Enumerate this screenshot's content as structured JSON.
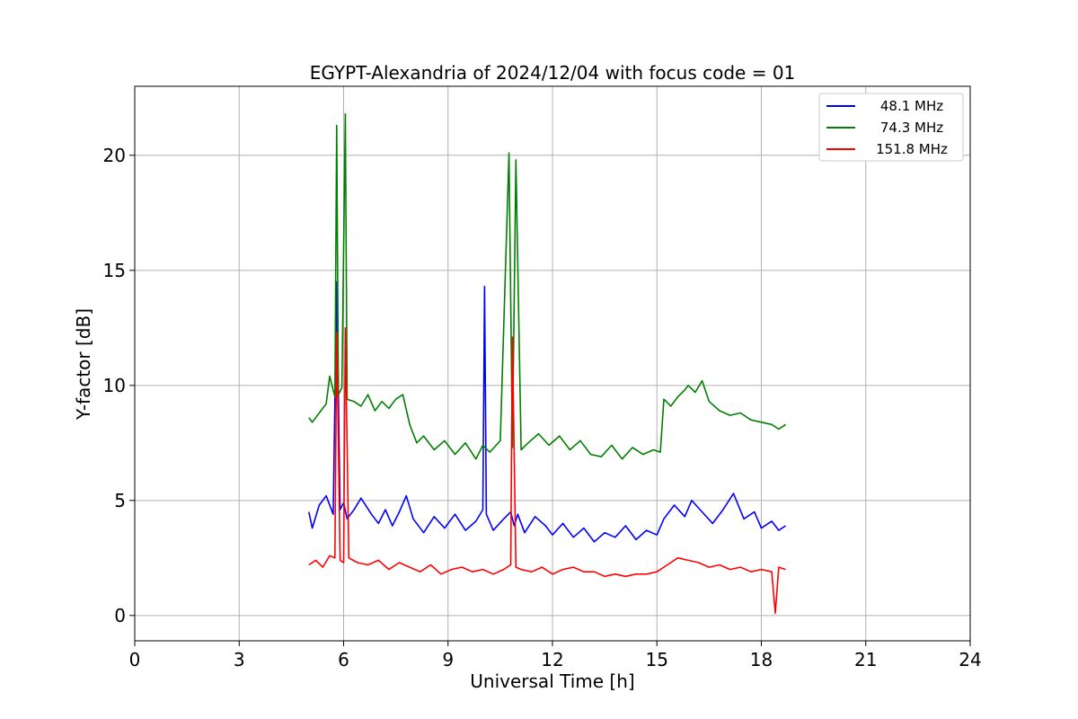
{
  "chart_data": {
    "type": "line",
    "title": "EGYPT-Alexandria of 2024/12/04 with focus code = 01",
    "xlabel": "Universal Time [h]",
    "ylabel": "Y-factor [dB]",
    "xlim": [
      0,
      24
    ],
    "ylim": [
      -1.1,
      23
    ],
    "xticks": [
      0,
      3,
      6,
      9,
      12,
      15,
      18,
      21,
      24
    ],
    "yticks": [
      0,
      5,
      10,
      15,
      20
    ],
    "grid": true,
    "legend_position": "top-right",
    "series": [
      {
        "name": "48.1 MHz",
        "color": "#0000ff",
        "x": [
          5.0,
          5.1,
          5.3,
          5.5,
          5.7,
          5.8,
          5.9,
          6.0,
          6.1,
          6.3,
          6.5,
          6.8,
          7.0,
          7.2,
          7.4,
          7.6,
          7.8,
          8.0,
          8.3,
          8.6,
          8.9,
          9.2,
          9.5,
          9.8,
          10.0,
          10.05,
          10.1,
          10.3,
          10.6,
          10.8,
          10.9,
          11.0,
          11.2,
          11.5,
          11.8,
          12.0,
          12.3,
          12.6,
          12.9,
          13.2,
          13.5,
          13.8,
          14.1,
          14.4,
          14.7,
          15.0,
          15.2,
          15.5,
          15.8,
          16.0,
          16.3,
          16.6,
          16.9,
          17.2,
          17.5,
          17.8,
          18.0,
          18.3,
          18.5,
          18.7
        ],
        "y": [
          4.5,
          3.8,
          4.8,
          5.2,
          4.4,
          14.5,
          4.6,
          4.9,
          4.2,
          4.6,
          5.1,
          4.4,
          4.0,
          4.6,
          3.9,
          4.5,
          5.2,
          4.2,
          3.6,
          4.3,
          3.8,
          4.4,
          3.7,
          4.1,
          4.6,
          14.3,
          4.4,
          3.7,
          4.2,
          4.5,
          3.9,
          4.4,
          3.6,
          4.3,
          3.9,
          3.5,
          4.0,
          3.4,
          3.8,
          3.2,
          3.6,
          3.4,
          3.9,
          3.3,
          3.7,
          3.5,
          4.2,
          4.8,
          4.3,
          5.0,
          4.5,
          4.0,
          4.6,
          5.3,
          4.2,
          4.5,
          3.8,
          4.1,
          3.7,
          3.9
        ]
      },
      {
        "name": "74.3 MHz",
        "color": "#008000",
        "x": [
          5.0,
          5.1,
          5.3,
          5.5,
          5.6,
          5.75,
          5.8,
          5.85,
          5.95,
          6.05,
          6.1,
          6.3,
          6.5,
          6.7,
          6.9,
          7.1,
          7.3,
          7.5,
          7.7,
          7.9,
          8.1,
          8.3,
          8.6,
          8.9,
          9.2,
          9.5,
          9.8,
          10.0,
          10.2,
          10.5,
          10.75,
          10.85,
          10.95,
          11.1,
          11.3,
          11.6,
          11.9,
          12.2,
          12.5,
          12.8,
          13.1,
          13.4,
          13.7,
          14.0,
          14.3,
          14.6,
          14.9,
          15.1,
          15.2,
          15.4,
          15.6,
          15.8,
          15.9,
          16.1,
          16.3,
          16.5,
          16.8,
          17.1,
          17.4,
          17.7,
          18.0,
          18.3,
          18.5,
          18.7
        ],
        "y": [
          8.6,
          8.4,
          8.8,
          9.2,
          10.4,
          9.5,
          21.3,
          9.6,
          9.9,
          21.8,
          9.4,
          9.3,
          9.1,
          9.6,
          8.9,
          9.3,
          9.0,
          9.4,
          9.6,
          8.3,
          7.5,
          7.8,
          7.2,
          7.6,
          7.0,
          7.5,
          6.8,
          7.4,
          7.1,
          7.6,
          20.1,
          7.3,
          19.8,
          7.2,
          7.5,
          7.9,
          7.4,
          7.8,
          7.2,
          7.6,
          7.0,
          6.9,
          7.4,
          6.8,
          7.3,
          7.0,
          7.2,
          7.1,
          9.4,
          9.1,
          9.5,
          9.8,
          10.0,
          9.7,
          10.2,
          9.3,
          8.9,
          8.7,
          8.8,
          8.5,
          8.4,
          8.3,
          8.1,
          8.3
        ]
      },
      {
        "name": "151.8 MHz",
        "color": "#ff0000",
        "x": [
          5.0,
          5.2,
          5.4,
          5.6,
          5.75,
          5.8,
          5.9,
          6.0,
          6.05,
          6.15,
          6.4,
          6.7,
          7.0,
          7.3,
          7.6,
          7.9,
          8.2,
          8.5,
          8.8,
          9.1,
          9.4,
          9.7,
          10.0,
          10.3,
          10.6,
          10.8,
          10.85,
          10.95,
          11.1,
          11.4,
          11.7,
          12.0,
          12.3,
          12.6,
          12.9,
          13.2,
          13.5,
          13.8,
          14.1,
          14.4,
          14.7,
          15.0,
          15.3,
          15.6,
          15.9,
          16.2,
          16.5,
          16.8,
          17.1,
          17.4,
          17.7,
          18.0,
          18.3,
          18.4,
          18.5,
          18.7
        ],
        "y": [
          2.2,
          2.4,
          2.1,
          2.6,
          2.5,
          12.3,
          2.4,
          2.3,
          12.5,
          2.5,
          2.3,
          2.2,
          2.4,
          2.0,
          2.3,
          2.1,
          1.9,
          2.2,
          1.8,
          2.0,
          2.1,
          1.9,
          2.0,
          1.8,
          2.0,
          2.2,
          12.1,
          2.1,
          2.0,
          1.9,
          2.1,
          1.8,
          2.0,
          2.1,
          1.9,
          1.9,
          1.7,
          1.8,
          1.7,
          1.8,
          1.8,
          1.9,
          2.2,
          2.5,
          2.4,
          2.3,
          2.1,
          2.2,
          2.0,
          2.1,
          1.9,
          2.0,
          1.9,
          0.1,
          2.1,
          2.0
        ]
      }
    ]
  }
}
